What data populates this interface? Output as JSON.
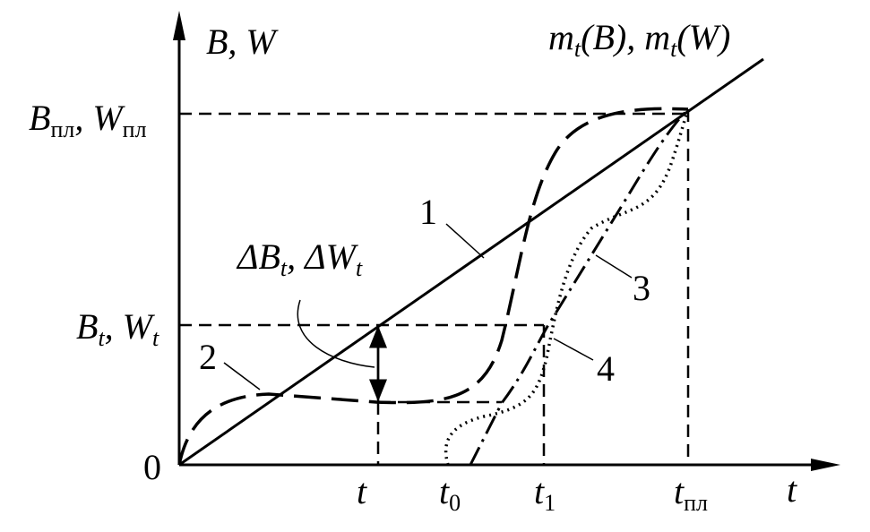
{
  "axes": {
    "y_label": {
      "parts": [
        {
          "text": "B, W"
        }
      ]
    },
    "x_label": {
      "parts": [
        {
          "text": "t"
        }
      ]
    },
    "origin": {
      "parts": [
        {
          "text": "0"
        }
      ]
    }
  },
  "top_label": {
    "parts": [
      {
        "text": "m"
      },
      {
        "text": "t",
        "sub": true
      },
      {
        "text": "(B), m"
      },
      {
        "text": "t",
        "sub": true
      },
      {
        "text": "(W)"
      }
    ]
  },
  "y_marks": [
    {
      "parts": [
        {
          "text": "B"
        },
        {
          "text": "пл",
          "sub": true,
          "upright": true
        },
        {
          "text": ", W"
        },
        {
          "text": "пл",
          "sub": true,
          "upright": true
        }
      ]
    },
    {
      "parts": [
        {
          "text": "B"
        },
        {
          "text": "t",
          "sub": true
        },
        {
          "text": ", W"
        },
        {
          "text": "t",
          "sub": true
        }
      ]
    }
  ],
  "x_marks": [
    {
      "parts": [
        {
          "text": "t"
        }
      ]
    },
    {
      "parts": [
        {
          "text": "t"
        },
        {
          "text": "0",
          "sub": true,
          "upright": true
        }
      ]
    },
    {
      "parts": [
        {
          "text": "t"
        },
        {
          "text": "1",
          "sub": true,
          "upright": true
        }
      ]
    },
    {
      "parts": [
        {
          "text": "t"
        },
        {
          "text": "пл",
          "sub": true,
          "upright": true
        }
      ]
    }
  ],
  "delta_label": {
    "parts": [
      {
        "text": "ΔB"
      },
      {
        "text": "t",
        "sub": true
      },
      {
        "text": ", ΔW"
      },
      {
        "text": "t",
        "sub": true
      }
    ]
  },
  "curve_labels": [
    {
      "parts": [
        {
          "text": "1"
        }
      ]
    },
    {
      "parts": [
        {
          "text": "2"
        }
      ]
    },
    {
      "parts": [
        {
          "text": "3"
        }
      ]
    },
    {
      "parts": [
        {
          "text": "4"
        }
      ]
    }
  ]
}
